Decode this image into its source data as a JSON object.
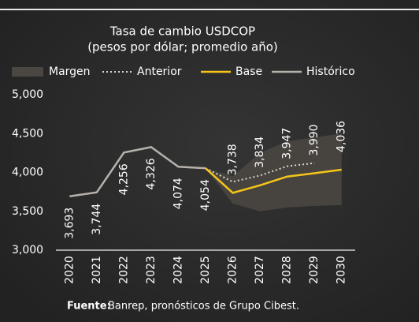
{
  "chart_data": {
    "type": "line",
    "title": "Tasa de cambio USDCOP",
    "subtitle": "(pesos por dólar; promedio año)",
    "source_label": "Fuente:",
    "source": "Banrep, pronósticos de Grupo Cibest.",
    "categories": [
      "2020",
      "2021",
      "2022",
      "2023",
      "2024",
      "2025",
      "2026",
      "2027",
      "2028",
      "2029",
      "2030"
    ],
    "ylim": [
      3000,
      5000
    ],
    "yticks": [
      {
        "value": 5000,
        "label": "5,000"
      },
      {
        "value": 4500,
        "label": "4,500"
      },
      {
        "value": 4000,
        "label": "4,000"
      },
      {
        "value": 3500,
        "label": "3,500"
      },
      {
        "value": 3000,
        "label": "3,000"
      }
    ],
    "grid": false,
    "band": {
      "name": "Margen",
      "color": "#4a4743",
      "upper": [
        null,
        null,
        null,
        null,
        null,
        4054,
        3950,
        4250,
        4400,
        4450,
        4500
      ],
      "lower": [
        null,
        null,
        null,
        null,
        null,
        4054,
        3600,
        3500,
        3550,
        3570,
        3580
      ]
    },
    "series": [
      {
        "name": "Anterior",
        "color": "#d9d6d0",
        "dash": "dotted",
        "values": [
          null,
          null,
          null,
          null,
          null,
          4054,
          3880,
          3960,
          4080,
          4120,
          null
        ]
      },
      {
        "name": "Base",
        "color": "#f5c518",
        "dash": "solid",
        "values": [
          null,
          null,
          null,
          null,
          null,
          4054,
          3738,
          3834,
          3947,
          3990,
          4036
        ],
        "value_labels": [
          null,
          null,
          null,
          null,
          null,
          null,
          "3,738",
          "3,834",
          "3,947",
          "3,990",
          "4,036"
        ]
      },
      {
        "name": "Histórico",
        "color": "#b5b1ab",
        "dash": "solid",
        "values": [
          3693,
          3744,
          4256,
          4326,
          4074,
          4054,
          null,
          null,
          null,
          null,
          null
        ],
        "value_labels": [
          "3,693",
          "3,744",
          "4,256",
          "4,326",
          "4,074",
          "4,054",
          null,
          null,
          null,
          null,
          null
        ]
      }
    ]
  }
}
